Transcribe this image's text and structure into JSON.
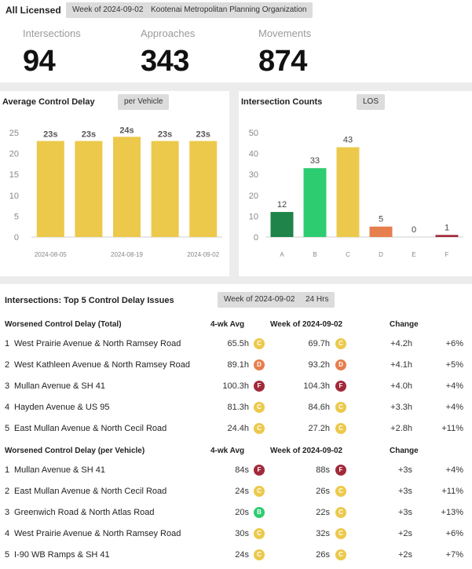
{
  "header": {
    "title": "All Licensed",
    "week_tag": "Week of 2024-09-02",
    "org_tag": "Kootenai Metropolitan Planning Organization"
  },
  "kpis": [
    {
      "label": "Intersections",
      "value": "94"
    },
    {
      "label": "Approaches",
      "value": "343"
    },
    {
      "label": "Movements",
      "value": "874"
    }
  ],
  "delay_panel": {
    "title": "Average Control Delay",
    "tag": "per Vehicle"
  },
  "counts_panel": {
    "title": "Intersection Counts",
    "tag": "LOS"
  },
  "colors": {
    "bar_yellow": "#ecc94b",
    "los_A": "#1e8449",
    "los_B": "#2ecc71",
    "los_C": "#ecc94b",
    "los_D": "#e67e4d",
    "los_E": "#d9d9d9",
    "los_F": "#a12a3a"
  },
  "chart_data": [
    {
      "type": "bar",
      "title": "Average Control Delay",
      "categories": [
        "2024-08-05",
        "2024-08-12",
        "2024-08-19",
        "2024-08-26",
        "2024-09-02"
      ],
      "tick_labels": [
        "2024-08-05",
        "2024-08-19",
        "2024-09-02"
      ],
      "values": [
        23,
        23,
        24,
        23,
        23
      ],
      "data_labels": [
        "23s",
        "23s",
        "24s",
        "23s",
        "23s"
      ],
      "yticks": [
        "0",
        "5",
        "10",
        "15",
        "20",
        "25"
      ],
      "ylim": [
        0,
        27
      ],
      "grid": false
    },
    {
      "type": "bar",
      "title": "Intersection Counts",
      "categories": [
        "A",
        "B",
        "C",
        "D",
        "E",
        "F"
      ],
      "values": [
        12,
        33,
        43,
        5,
        0,
        1
      ],
      "data_labels": [
        "12",
        "33",
        "43",
        "5",
        "0",
        "1"
      ],
      "yticks": [
        "0",
        "10",
        "20",
        "30",
        "40",
        "50"
      ],
      "ylim": [
        0,
        50
      ],
      "grid": false
    }
  ],
  "issues": {
    "title": "Intersections: Top 5 Control Delay Issues",
    "week_tag": "Week of 2024-09-02",
    "hours_tag": "24 Hrs",
    "sections": [
      {
        "heading": "Worsened Control Delay (Total)",
        "col_avg": "4-wk Avg",
        "col_week": "Week of 2024-09-02",
        "col_change": "Change",
        "rows": [
          {
            "rank": "1",
            "name": "West Prairie Avenue & North Ramsey Road",
            "avg": "65.5h",
            "avg_los": "C",
            "week": "69.7h",
            "week_los": "C",
            "change": "+4.2h",
            "pct": "+6%"
          },
          {
            "rank": "2",
            "name": "West Kathleen Avenue & North Ramsey Road",
            "avg": "89.1h",
            "avg_los": "D",
            "week": "93.2h",
            "week_los": "D",
            "change": "+4.1h",
            "pct": "+5%"
          },
          {
            "rank": "3",
            "name": "Mullan Avenue & SH 41",
            "avg": "100.3h",
            "avg_los": "F",
            "week": "104.3h",
            "week_los": "F",
            "change": "+4.0h",
            "pct": "+4%"
          },
          {
            "rank": "4",
            "name": "Hayden Avenue & US 95",
            "avg": "81.3h",
            "avg_los": "C",
            "week": "84.6h",
            "week_los": "C",
            "change": "+3.3h",
            "pct": "+4%"
          },
          {
            "rank": "5",
            "name": "East Mullan Avenue & North Cecil Road",
            "avg": "24.4h",
            "avg_los": "C",
            "week": "27.2h",
            "week_los": "C",
            "change": "+2.8h",
            "pct": "+11%"
          }
        ]
      },
      {
        "heading": "Worsened Control Delay (per Vehicle)",
        "col_avg": "4-wk Avg",
        "col_week": "Week of 2024-09-02",
        "col_change": "Change",
        "rows": [
          {
            "rank": "1",
            "name": "Mullan Avenue & SH 41",
            "avg": "84s",
            "avg_los": "F",
            "week": "88s",
            "week_los": "F",
            "change": "+3s",
            "pct": "+4%"
          },
          {
            "rank": "2",
            "name": "East Mullan Avenue & North Cecil Road",
            "avg": "24s",
            "avg_los": "C",
            "week": "26s",
            "week_los": "C",
            "change": "+3s",
            "pct": "+11%"
          },
          {
            "rank": "3",
            "name": "Greenwich Road & North Atlas Road",
            "avg": "20s",
            "avg_los": "B",
            "week": "22s",
            "week_los": "C",
            "change": "+3s",
            "pct": "+13%"
          },
          {
            "rank": "4",
            "name": "West Prairie Avenue & North Ramsey Road",
            "avg": "30s",
            "avg_los": "C",
            "week": "32s",
            "week_los": "C",
            "change": "+2s",
            "pct": "+6%"
          },
          {
            "rank": "5",
            "name": "I-90 WB Ramps & SH 41",
            "avg": "24s",
            "avg_los": "C",
            "week": "26s",
            "week_los": "C",
            "change": "+2s",
            "pct": "+7%"
          }
        ]
      }
    ]
  }
}
